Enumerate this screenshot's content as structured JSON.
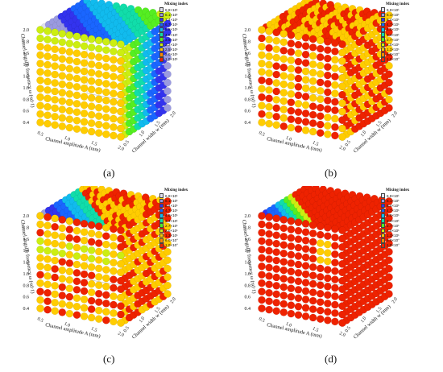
{
  "chart_data": [
    {
      "type": "scatter",
      "panel_label": "(a)",
      "xlabel": "Channel amplitude A (mm)",
      "ylabel": "Channel width w (mm)",
      "zlabel": "Channel angular frequency ω (πd·1)",
      "xticks": [
        "0.5",
        "1.0",
        "1.5",
        "2.0"
      ],
      "yticks": [
        "0.5",
        "1.0",
        "1.5",
        "2.0"
      ],
      "zticks": [
        "0.4",
        "0.6",
        "0.8",
        "1.0",
        "1.2",
        "1.4",
        "1.6",
        "1.8",
        "2.0"
      ],
      "legend_title": "Mixing index",
      "legend_labels": [
        "8.8×10¹",
        "8.1×10¹",
        "7.4×10¹",
        "6.7×10¹",
        "5.8×10¹",
        "4.6×10¹",
        "3.9×10¹",
        "3.3×10¹",
        "2.5×10¹",
        "2.0×10¹",
        "1.0×10¹"
      ],
      "pattern": "gradient"
    },
    {
      "type": "scatter",
      "panel_label": "(b)",
      "xlabel": "Channel amplitude A (mm)",
      "ylabel": "Channel width w (mm)",
      "zlabel": "Channel angular frequency ω (πd·1)",
      "xticks": [
        "0.5",
        "1.0",
        "1.5",
        "2.0"
      ],
      "yticks": [
        "0.5",
        "1.0",
        "1.5",
        "2.0"
      ],
      "zticks": [
        "0.4",
        "0.6",
        "0.8",
        "1.0",
        "1.2",
        "1.4",
        "1.6",
        "1.8",
        "2.0"
      ],
      "legend_title": "Mixing index",
      "legend_labels": [
        "6.8×10¹",
        "6.1×10¹",
        "5.4×10¹",
        "4.7×10¹",
        "4.0×10¹",
        "3.4×10¹",
        "2.7×10¹",
        "2.0×10¹",
        "1.3×10¹",
        "6.0×10°",
        "1.0×10°"
      ],
      "pattern": "mottled"
    },
    {
      "type": "scatter",
      "panel_label": "(c)",
      "xlabel": "Channel amplitude A (mm)",
      "ylabel": "Channel width w (mm)",
      "zlabel": "Channel angular frequency ω (πd·1)",
      "xticks": [
        "0.5",
        "1.0",
        "1.5",
        "2.0"
      ],
      "yticks": [
        "0.5",
        "1.0",
        "1.5",
        "2.0"
      ],
      "zticks": [
        "0.4",
        "0.6",
        "0.8",
        "1.0",
        "1.2",
        "1.4",
        "1.6",
        "1.8",
        "2.0"
      ],
      "legend_title": "Mixing index",
      "legend_labels": [
        "6.8×10¹",
        "6.1×10¹",
        "5.4×10¹",
        "4.7×10¹",
        "4.0×10¹",
        "3.4×10¹",
        "2.7×10¹",
        "2.0×10¹",
        "1.3×10¹",
        "6.0×10°",
        "1.0×10°"
      ],
      "pattern": "mottled-top"
    },
    {
      "type": "scatter",
      "panel_label": "(d)",
      "xlabel": "Channel amplitude A (mm)",
      "ylabel": "Channel width w (mm)",
      "zlabel": "Channel angular frequency ω (πd·1)",
      "xticks": [
        "0.5",
        "1.0",
        "1.5",
        "2.0"
      ],
      "yticks": [
        "0.5",
        "1.0",
        "1.5",
        "2.0"
      ],
      "zticks": [
        "0.4",
        "0.6",
        "0.8",
        "1.0",
        "1.2",
        "1.4",
        "1.6",
        "1.8",
        "2.0"
      ],
      "legend_title": "Mixing index",
      "legend_labels": [
        "6.8×10¹",
        "6.1×10¹",
        "5.4×10¹",
        "4.7×10¹",
        "4.0×10¹",
        "3.4×10¹",
        "2.7×10¹",
        "2.0×10¹",
        "1.3×10¹",
        "6.0×10°",
        "1.0×10°"
      ],
      "pattern": "red"
    }
  ],
  "colormap": [
    "#e0e0ee",
    "#9a9ae0",
    "#3333ee",
    "#1a66ff",
    "#11bbee",
    "#11ddaa",
    "#55ee22",
    "#ccee11",
    "#ffcc00",
    "#ff8800",
    "#ee2200",
    "#000000"
  ]
}
